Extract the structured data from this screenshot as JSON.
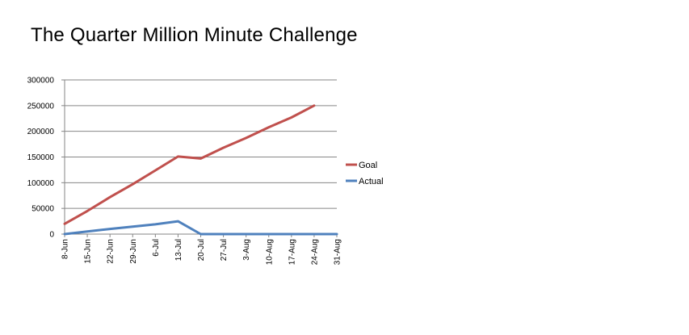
{
  "chart_data": {
    "type": "line",
    "title": "The Quarter Million Minute Challenge",
    "xlabel": "",
    "ylabel": "",
    "categories": [
      "8-Jun",
      "15-Jun",
      "22-Jun",
      "29-Jun",
      "6-Jul",
      "13-Jul",
      "20-Jul",
      "27-Jul",
      "3-Aug",
      "10-Aug",
      "17-Aug",
      "24-Aug",
      "31-Aug"
    ],
    "yticks": [
      "0",
      "50000",
      "100000",
      "150000",
      "200000",
      "250000",
      "300000"
    ],
    "ylim": [
      0,
      300000
    ],
    "grid": true,
    "legend_position": "right",
    "series": [
      {
        "name": "Goal",
        "color": "#c0504d",
        "values": [
          20000,
          45000,
          72000,
          97000,
          124000,
          151000,
          147000,
          168000,
          187000,
          208000,
          227000,
          250000,
          null
        ]
      },
      {
        "name": "Actual",
        "color": "#4f81bd",
        "values": [
          0,
          5000,
          10000,
          14500,
          19000,
          25000,
          0,
          0,
          0,
          0,
          0,
          0,
          0
        ]
      }
    ]
  }
}
